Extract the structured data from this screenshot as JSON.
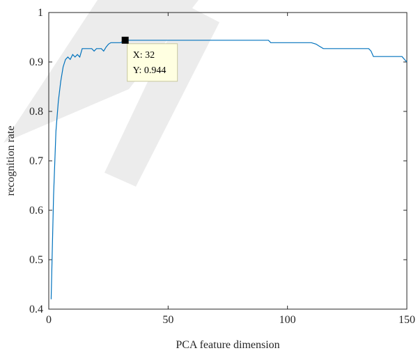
{
  "chart_data": {
    "type": "line",
    "xlabel": "PCA feature dimension",
    "ylabel": "recognition rate",
    "xlim": [
      0,
      150
    ],
    "ylim": [
      0.4,
      1
    ],
    "xticks": [
      0,
      50,
      100,
      150
    ],
    "xtick_labels": [
      "0",
      "50",
      "100",
      "150"
    ],
    "yticks": [
      0.4,
      0.5,
      0.6,
      0.7,
      0.8,
      0.9,
      1
    ],
    "ytick_labels": [
      "0.4",
      "0.5",
      "0.6",
      "0.7",
      "0.8",
      "0.9",
      "1"
    ],
    "grid": false,
    "series": [
      {
        "color": "#0072BD",
        "x": [
          1,
          2,
          3,
          4,
          5,
          6,
          7,
          8,
          9,
          10,
          11,
          12,
          13,
          14,
          15,
          16,
          17,
          18,
          19,
          20,
          21,
          22,
          23,
          24,
          25,
          26,
          28,
          30,
          32,
          40,
          60,
          80,
          92,
          93,
          100,
          110,
          112,
          113,
          115,
          120,
          130,
          134,
          135,
          136,
          140,
          145,
          148,
          149,
          150
        ],
        "y": [
          0.42,
          0.63,
          0.76,
          0.82,
          0.86,
          0.89,
          0.905,
          0.91,
          0.905,
          0.915,
          0.91,
          0.915,
          0.91,
          0.927,
          0.927,
          0.927,
          0.927,
          0.927,
          0.922,
          0.927,
          0.927,
          0.927,
          0.922,
          0.93,
          0.936,
          0.939,
          0.939,
          0.939,
          0.944,
          0.944,
          0.944,
          0.944,
          0.944,
          0.939,
          0.939,
          0.939,
          0.936,
          0.933,
          0.927,
          0.927,
          0.927,
          0.927,
          0.922,
          0.911,
          0.911,
          0.911,
          0.911,
          0.905,
          0.9
        ]
      }
    ],
    "datatip": {
      "x_text": "X: 32",
      "y_text": "Y: 0.944",
      "x": 32,
      "y": 0.944
    }
  },
  "colors": {
    "axis": "#262626",
    "line": "#0072BD",
    "tip_background": "#FFFFE1",
    "tip_border": "#C8C8A0",
    "marker": "#000000"
  }
}
